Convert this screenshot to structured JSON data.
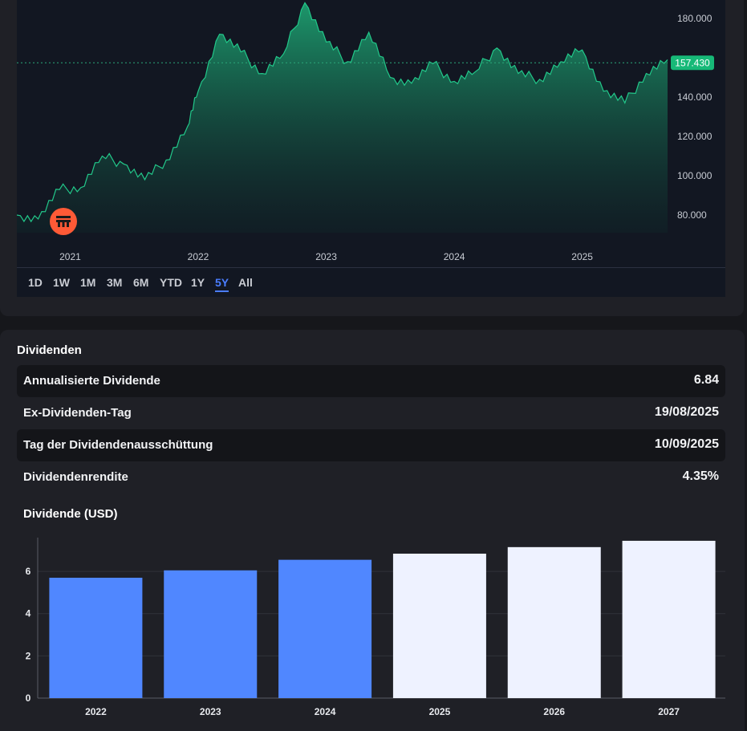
{
  "colors": {
    "accent": "#4a7dff",
    "price_line": "#22c88a",
    "price_badge": "#17b978",
    "bar_actual": "#5087ff",
    "bar_estimate": "#eef2ff",
    "logo": "#ff5a36"
  },
  "icons": {
    "logo": "logo-icon"
  },
  "price_chart": {
    "current_price_label": "157.430",
    "y_ticks": [
      "180.000",
      "140.000",
      "120.000",
      "100.000",
      "80.000"
    ],
    "x_ticks": [
      "2021",
      "2022",
      "2023",
      "2024",
      "2025"
    ],
    "range_buttons": [
      "1D",
      "1W",
      "1M",
      "3M",
      "6M",
      "YTD",
      "1Y",
      "5Y",
      "All"
    ],
    "active_range": "5Y"
  },
  "dividends": {
    "title": "Dividenden",
    "rows": [
      {
        "label": "Annualisierte Dividende",
        "value": "6.84"
      },
      {
        "label": "Ex-Dividenden-Tag",
        "value": "19/08/2025"
      },
      {
        "label": "Tag der Dividendenausschüttung",
        "value": "10/09/2025"
      },
      {
        "label": "Dividendenrendite",
        "value": "4.35%"
      }
    ],
    "chart_title": "Dividende (USD)"
  },
  "chart_data": [
    {
      "type": "area",
      "series": [
        {
          "x": [
            "2020-08",
            "2020-10",
            "2020-12",
            "2021-02",
            "2021-04",
            "2021-06",
            "2021-08",
            "2021-10",
            "2021-12",
            "2022-01",
            "2022-03",
            "2022-05",
            "2022-07",
            "2022-09",
            "2022-11",
            "2023-01",
            "2023-03",
            "2023-05",
            "2023-07",
            "2023-09",
            "2023-11",
            "2024-01",
            "2024-03",
            "2024-05",
            "2024-07",
            "2024-09",
            "2024-11",
            "2025-01",
            "2025-03",
            "2025-05",
            "2025-07",
            "2025-09"
          ],
          "y": [
            80,
            78,
            93,
            94,
            110,
            106,
            98,
            108,
            125,
            143,
            172,
            163,
            152,
            162,
            188,
            168,
            158,
            173,
            150,
            147,
            157,
            148,
            153,
            165,
            152,
            149,
            158,
            164,
            143,
            137,
            152,
            159
          ]
        }
      ],
      "y_ticks": [
        80,
        100,
        120,
        140,
        180
      ],
      "x_ticks": [
        "2021",
        "2022",
        "2023",
        "2024",
        "2025"
      ],
      "ylim": [
        75,
        190
      ],
      "current_value": 157.43,
      "grid": false
    },
    {
      "type": "bar",
      "title": "Dividende (USD)",
      "categories": [
        "2022",
        "2023",
        "2024",
        "2025",
        "2026",
        "2027"
      ],
      "series": [
        {
          "values": [
            5.7,
            6.05,
            6.55,
            6.84,
            7.15,
            7.45
          ]
        }
      ],
      "estimated": [
        false,
        false,
        false,
        true,
        true,
        true
      ],
      "y_ticks": [
        0,
        2,
        4,
        6
      ],
      "ylim": [
        0,
        7.6
      ],
      "grid": true
    }
  ]
}
